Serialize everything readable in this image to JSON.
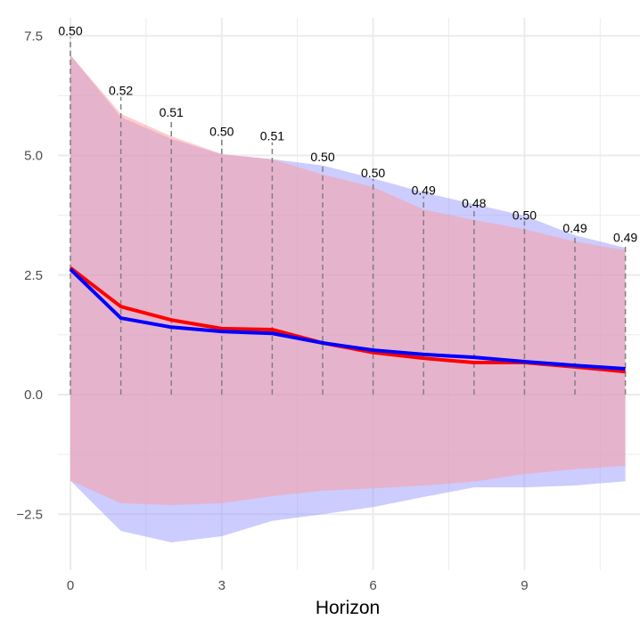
{
  "chart_data": {
    "type": "line",
    "title": "",
    "xlabel": "Horizon",
    "ylabel": "",
    "xlim": [
      -0.4,
      11.3
    ],
    "ylim": [
      -3.6,
      7.8
    ],
    "x_ticks": [
      0,
      3,
      6,
      9
    ],
    "x_tick_labels": [
      "0",
      "3",
      "6",
      "9"
    ],
    "y_ticks": [
      -2.5,
      0.0,
      2.5,
      5.0,
      7.5
    ],
    "y_tick_labels": [
      "−2.5",
      "0.0",
      "2.5",
      "5.0",
      "7.5"
    ],
    "grid": true,
    "legend": null,
    "x": [
      0,
      1,
      2,
      3,
      4,
      5,
      6,
      7,
      8,
      9,
      10,
      11
    ],
    "series": [
      {
        "name": "red",
        "kind": "line",
        "color": "#ff0000",
        "values": [
          2.65,
          1.84,
          1.56,
          1.38,
          1.36,
          1.08,
          0.88,
          0.76,
          0.67,
          0.67,
          0.58,
          0.48
        ]
      },
      {
        "name": "blue",
        "kind": "line",
        "color": "#0000ff",
        "values": [
          2.62,
          1.6,
          1.41,
          1.32,
          1.28,
          1.08,
          0.93,
          0.84,
          0.78,
          0.69,
          0.61,
          0.54
        ]
      }
    ],
    "ribbons": [
      {
        "name": "blue-band",
        "color": "#9999ff",
        "opacity": 0.5,
        "upper": [
          7.1,
          5.8,
          5.35,
          5.02,
          4.92,
          4.79,
          4.52,
          4.23,
          3.98,
          3.74,
          3.33,
          3.07
        ],
        "lower": [
          -1.8,
          -2.85,
          -3.09,
          -2.96,
          -2.64,
          -2.5,
          -2.35,
          -2.14,
          -1.94,
          -1.94,
          -1.9,
          -1.81
        ]
      },
      {
        "name": "red-band",
        "color": "#ff9999",
        "opacity": 0.5,
        "upper": [
          7.1,
          5.87,
          5.4,
          5.03,
          4.92,
          4.6,
          4.34,
          3.87,
          3.65,
          3.46,
          3.2,
          3.02
        ],
        "lower": [
          -1.8,
          -2.27,
          -2.31,
          -2.27,
          -2.12,
          -2.01,
          -1.96,
          -1.9,
          -1.82,
          -1.66,
          -1.56,
          -1.49
        ]
      }
    ],
    "annotations": {
      "labels": [
        "0.50",
        "0.52",
        "0.51",
        "0.50",
        "0.51",
        "0.50",
        "0.50",
        "0.49",
        "0.48",
        "0.50",
        "0.49",
        "0.49"
      ],
      "label_y": [
        7.55,
        6.3,
        5.85,
        5.45,
        5.35,
        4.92,
        4.58,
        4.22,
        3.95,
        3.7,
        3.43,
        3.23
      ],
      "dashed_vlines": true,
      "dashed_color": "#808080"
    }
  }
}
